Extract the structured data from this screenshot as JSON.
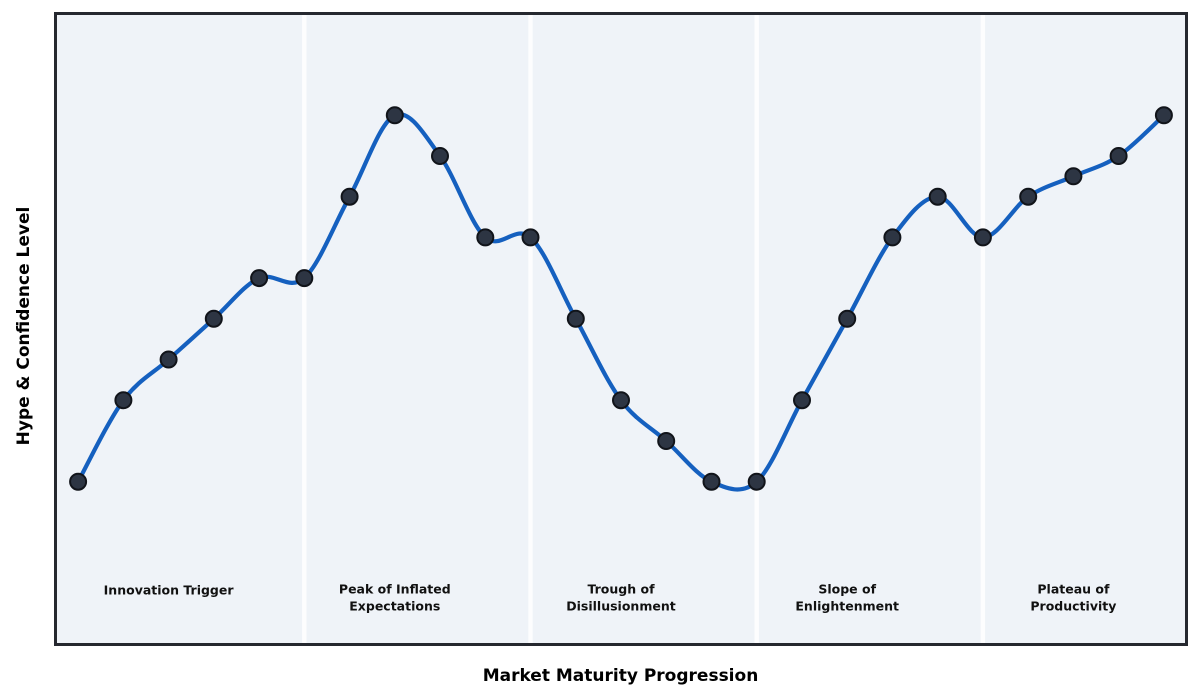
{
  "chart_data": {
    "type": "line",
    "title": "",
    "xlabel": "Market Maturity Progression",
    "ylabel": "Hype & Confidence Level",
    "x": [
      0,
      1,
      2,
      3,
      4,
      5,
      6,
      7,
      8,
      9,
      10,
      11,
      12,
      13,
      14,
      15,
      16,
      17,
      18,
      19,
      20,
      21,
      22,
      23,
      24
    ],
    "series": [
      {
        "name": "Hype & Confidence Level",
        "values": [
          5,
          25,
          35,
          45,
          55,
          55,
          75,
          95,
          85,
          65,
          65,
          45,
          25,
          15,
          5,
          5,
          25,
          45,
          65,
          75,
          65,
          75,
          80,
          85,
          95
        ]
      }
    ],
    "xlim": [
      -0.5,
      24.5
    ],
    "ylim": [
      -35,
      120
    ],
    "grid": false,
    "legend": "none",
    "marker": "circle",
    "line_smoothing": "spline",
    "phases": [
      {
        "label": "Innovation Trigger",
        "lines": [
          "Innovation Trigger"
        ],
        "center_index": 2
      },
      {
        "label": "Peak of Inflated Expectations",
        "lines": [
          "Peak of Inflated",
          "Expectations"
        ],
        "center_index": 7
      },
      {
        "label": "Trough of Disillusionment",
        "lines": [
          "Trough of",
          "Disillusionment"
        ],
        "center_index": 12
      },
      {
        "label": "Slope of Enlightenment",
        "lines": [
          "Slope of",
          "Enlightenment"
        ],
        "center_index": 17
      },
      {
        "label": "Plateau of Productivity",
        "lines": [
          "Plateau of",
          "Productivity"
        ],
        "center_index": 22
      }
    ],
    "phase_boundary_indices": [
      5,
      10,
      15,
      20
    ],
    "colors": {
      "line": "#1560bf",
      "marker_fill": "#2d3543",
      "marker_edge": "#11141a",
      "plot_background": "#eff3f8",
      "phase_divider": "#fdfdfe",
      "spine": "#25282f",
      "phase_label": "#111111",
      "axis_label": "#000000",
      "figure_background": "#ffffff"
    }
  }
}
